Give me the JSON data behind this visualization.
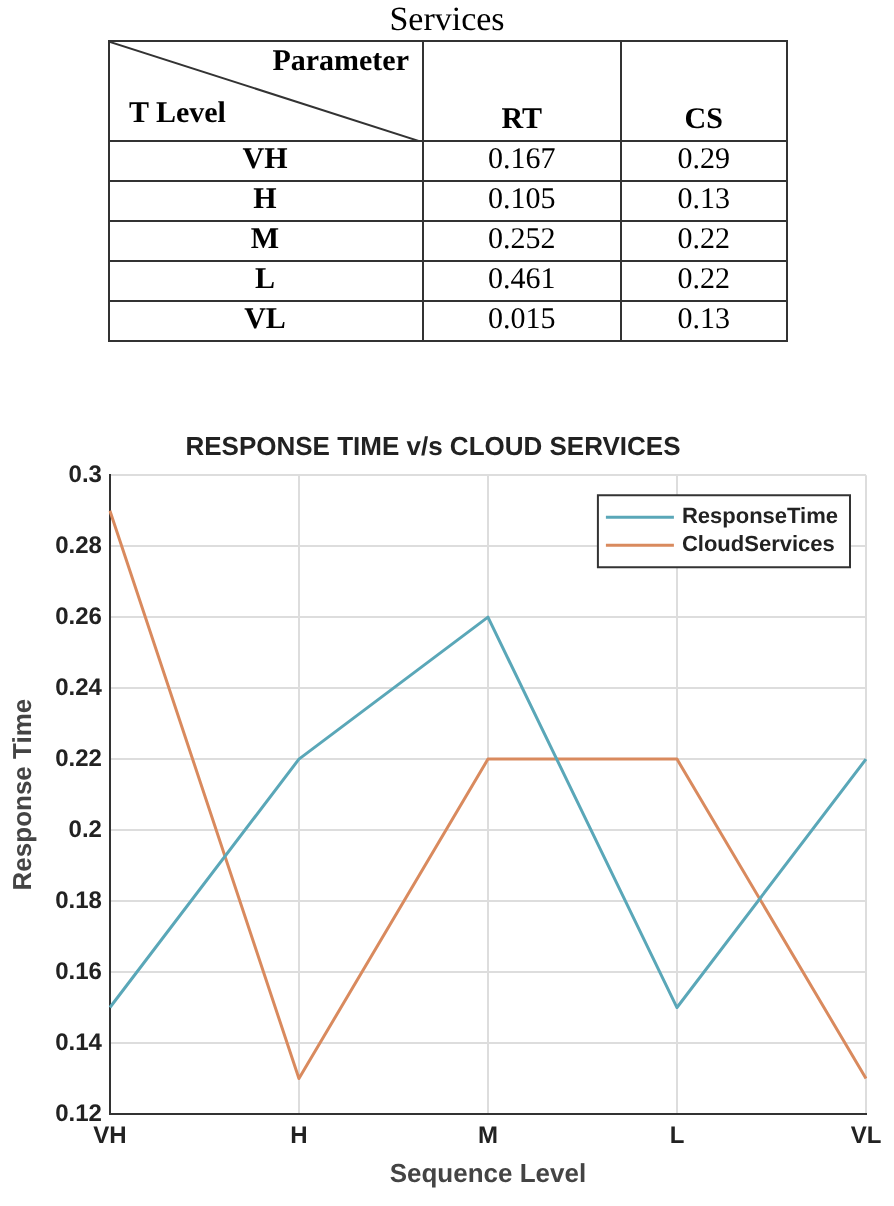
{
  "chart_data": [
    {
      "type": "other",
      "title": "Services",
      "annotations": [
        "Parameter",
        "T Level",
        "RT",
        "CS",
        "VH",
        "0.167",
        "0.29",
        "H",
        "0.105",
        "0.13",
        "M",
        "0.252",
        "0.22",
        "L",
        "0.461",
        "0.22",
        "VL",
        "0.015",
        "0.13"
      ]
    },
    {
      "type": "line",
      "title": "RESPONSE TIME v/s CLOUD SERVICES",
      "xlabel": "Sequence Level",
      "ylabel": "Response Time",
      "categories": [
        "VH",
        "H",
        "M",
        "L",
        "VL"
      ],
      "series": [
        {
          "name": "ResponseTime",
          "color": "#5aa7b8",
          "values": [
            0.15,
            0.22,
            0.26,
            0.15,
            0.22
          ]
        },
        {
          "name": "CloudServices",
          "color": "#d98a5e",
          "values": [
            0.29,
            0.13,
            0.22,
            0.22,
            0.13
          ]
        }
      ],
      "ylim": [
        0.12,
        0.3
      ],
      "yticks": [
        0.12,
        0.14,
        0.16,
        0.18,
        0.2,
        0.22,
        0.24,
        0.26,
        0.28,
        0.3
      ],
      "grid": true,
      "legend": "top right"
    }
  ]
}
